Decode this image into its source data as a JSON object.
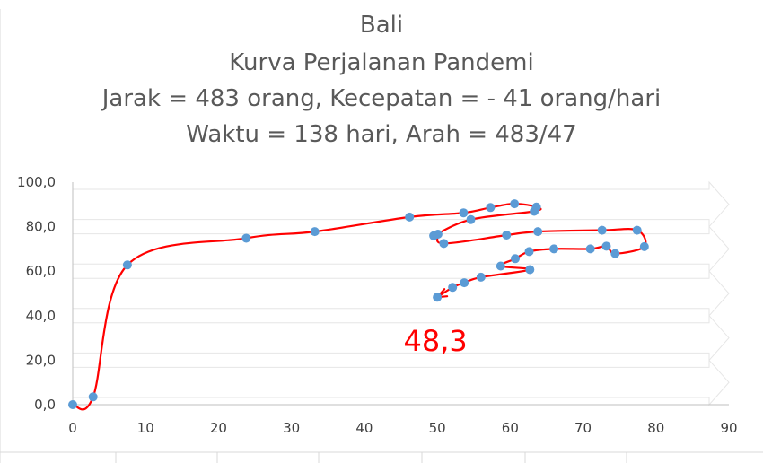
{
  "chart_data": {
    "type": "scatter",
    "title": [
      "Bali",
      "Kurva Perjalanan Pandemi",
      "Jarak = 483 orang, Kecepatan = - 41 orang/hari",
      "Waktu = 138 hari, Arah = 483/47"
    ],
    "xlabel": "",
    "ylabel": "",
    "xlim": [
      0,
      90
    ],
    "ylim": [
      0,
      100
    ],
    "x_ticks": [
      "0",
      "10",
      "20",
      "30",
      "40",
      "50",
      "60",
      "70",
      "80",
      "90"
    ],
    "y_ticks": [
      "0,0",
      "20,0",
      "40,0",
      "60,0",
      "80,0",
      "100,0"
    ],
    "grid": false,
    "line_color": "#ff0000",
    "marker_color": "#5b9bd5",
    "annotation": {
      "text": "48,3",
      "color": "#ff0000",
      "x": 50,
      "y": 48.3
    },
    "series": [
      {
        "x": [
          0,
          2.8,
          7.5,
          23.8,
          33.2,
          46.2,
          53.6,
          57.3,
          60.6,
          63.6,
          63.3,
          54.6,
          49.5,
          50.1,
          50.9,
          59.5,
          63.8,
          72.6,
          77.4,
          78.4,
          74.4,
          73.2,
          71.0,
          66.0,
          62.6,
          60.7,
          58.7,
          62.7,
          56.0,
          53.7,
          52.1,
          50.0
        ],
        "y": [
          0.0,
          3.5,
          62.8,
          74.8,
          77.8,
          84.3,
          86.2,
          88.6,
          90.3,
          88.8,
          86.9,
          83.2,
          75.9,
          76.6,
          72.4,
          76.2,
          77.8,
          78.4,
          78.4,
          71.0,
          67.9,
          71.2,
          70.0,
          70.0,
          68.8,
          65.6,
          62.3,
          60.7,
          57.3,
          54.8,
          52.7,
          48.3
        ]
      }
    ]
  }
}
